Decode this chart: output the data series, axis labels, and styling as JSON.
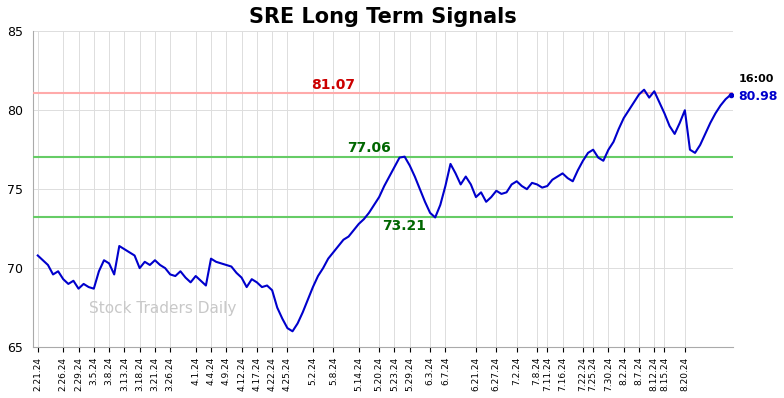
{
  "title": "SRE Long Term Signals",
  "title_fontsize": 15,
  "background_color": "#ffffff",
  "line_color": "#0000cc",
  "line_width": 1.5,
  "red_line_y": 81.07,
  "green_line_upper": 77.06,
  "green_line_lower": 73.21,
  "red_line_color": "#ffaaaa",
  "green_line_color": "#66cc66",
  "ylim": [
    65,
    85
  ],
  "yticks": [
    65,
    70,
    75,
    80,
    85
  ],
  "annotation_81": {
    "text": "81.07",
    "color": "#cc0000",
    "fontsize": 10
  },
  "annotation_77": {
    "text": "77.06",
    "color": "#006600",
    "fontsize": 10
  },
  "annotation_73": {
    "text": "73.21",
    "color": "#006600",
    "fontsize": 10
  },
  "annotation_end_time": {
    "text": "16:00",
    "color": "#000000",
    "fontsize": 8
  },
  "annotation_end_val": {
    "text": "80.98",
    "color": "#0000cc",
    "fontsize": 9
  },
  "watermark": "Stock Traders Daily",
  "watermark_color": "#c8c8c8",
  "watermark_fontsize": 11,
  "x_labels": [
    "2.21.24",
    "2.26.24",
    "2.29.24",
    "3.5.24",
    "3.8.24",
    "3.13.24",
    "3.18.24",
    "3.21.24",
    "3.26.24",
    "4.1.24",
    "4.4.24",
    "4.9.24",
    "4.12.24",
    "4.17.24",
    "4.22.24",
    "4.25.24",
    "5.2.24",
    "5.8.24",
    "5.14.24",
    "5.20.24",
    "5.23.24",
    "5.29.24",
    "6.3.24",
    "6.7.24",
    "6.21.24",
    "6.27.24",
    "7.2.24",
    "7.8.24",
    "7.11.24",
    "7.16.24",
    "7.22.24",
    "7.25.24",
    "7.30.24",
    "8.2.24",
    "8.7.24",
    "8.12.24",
    "8.15.24",
    "8.20.24"
  ],
  "y_values": [
    70.8,
    70.5,
    70.2,
    69.6,
    69.8,
    69.3,
    69.0,
    69.2,
    68.7,
    69.0,
    68.8,
    68.7,
    69.8,
    70.5,
    70.3,
    69.6,
    71.4,
    71.2,
    71.0,
    70.8,
    70.0,
    70.4,
    70.2,
    70.5,
    70.2,
    70.0,
    69.6,
    69.5,
    69.8,
    69.4,
    69.1,
    69.5,
    69.2,
    68.9,
    70.6,
    70.4,
    70.3,
    70.2,
    70.1,
    69.7,
    69.4,
    68.8,
    69.3,
    69.1,
    68.8,
    68.9,
    68.6,
    67.5,
    66.8,
    66.2,
    66.0,
    66.5,
    67.2,
    68.0,
    68.8,
    69.5,
    70.0,
    70.6,
    71.0,
    71.4,
    71.8,
    72.0,
    72.4,
    72.8,
    73.1,
    73.5,
    74.0,
    74.5,
    75.2,
    75.8,
    76.4,
    77.0,
    77.06,
    76.5,
    75.8,
    75.0,
    74.2,
    73.5,
    73.21,
    74.0,
    75.2,
    76.6,
    76.0,
    75.3,
    75.8,
    75.3,
    74.5,
    74.8,
    74.2,
    74.5,
    74.9,
    74.7,
    74.8,
    75.3,
    75.5,
    75.2,
    75.0,
    75.4,
    75.3,
    75.1,
    75.2,
    75.6,
    75.8,
    76.0,
    75.7,
    75.5,
    76.2,
    76.8,
    77.3,
    77.5,
    77.0,
    76.8,
    77.5,
    78.0,
    78.8,
    79.5,
    80.0,
    80.5,
    81.0,
    81.3,
    80.8,
    81.2,
    80.5,
    79.8,
    79.0,
    78.5,
    79.2,
    80.0,
    77.5,
    77.3,
    77.8,
    78.5,
    79.2,
    79.8,
    80.3,
    80.7,
    80.98
  ],
  "tick_indices": [
    0,
    5,
    8,
    11,
    14,
    17,
    20,
    23,
    26,
    31,
    34,
    37,
    40,
    43,
    46,
    49,
    54,
    58,
    63,
    67,
    70,
    73,
    77,
    80,
    86,
    90,
    94,
    98,
    100,
    103,
    107,
    109,
    112,
    115,
    118,
    121,
    123,
    127
  ]
}
